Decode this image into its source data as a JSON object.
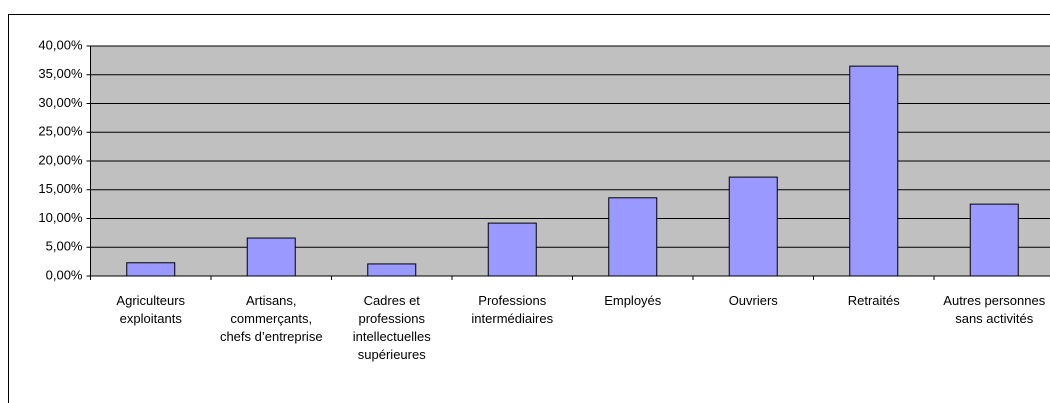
{
  "chart_data": {
    "type": "bar",
    "categories": [
      "Agriculteurs exploitants",
      "Artisans, commerçants, chefs d’entreprise",
      "Cadres et professions intellectuelles supérieures",
      "Professions intermédiaires",
      "Employés",
      "Ouvriers",
      "Retraités",
      "Autres personnes sans activités"
    ],
    "values": [
      2.3,
      6.6,
      2.1,
      9.2,
      13.6,
      17.2,
      36.5,
      12.5
    ],
    "color": "#9999ff",
    "plot_color": "#c0c0c0",
    "ylim": [
      0,
      40
    ],
    "yticks": [
      {
        "value": 0,
        "label": "0,00%"
      },
      {
        "value": 5,
        "label": "5,00%"
      },
      {
        "value": 10,
        "label": "10,00%"
      },
      {
        "value": 15,
        "label": "15,00%"
      },
      {
        "value": 20,
        "label": "20,00%"
      },
      {
        "value": 25,
        "label": "25,00%"
      },
      {
        "value": 30,
        "label": "30,00%"
      },
      {
        "value": 35,
        "label": "35,00%"
      },
      {
        "value": 40,
        "label": "40,00%"
      }
    ],
    "grid": true
  }
}
